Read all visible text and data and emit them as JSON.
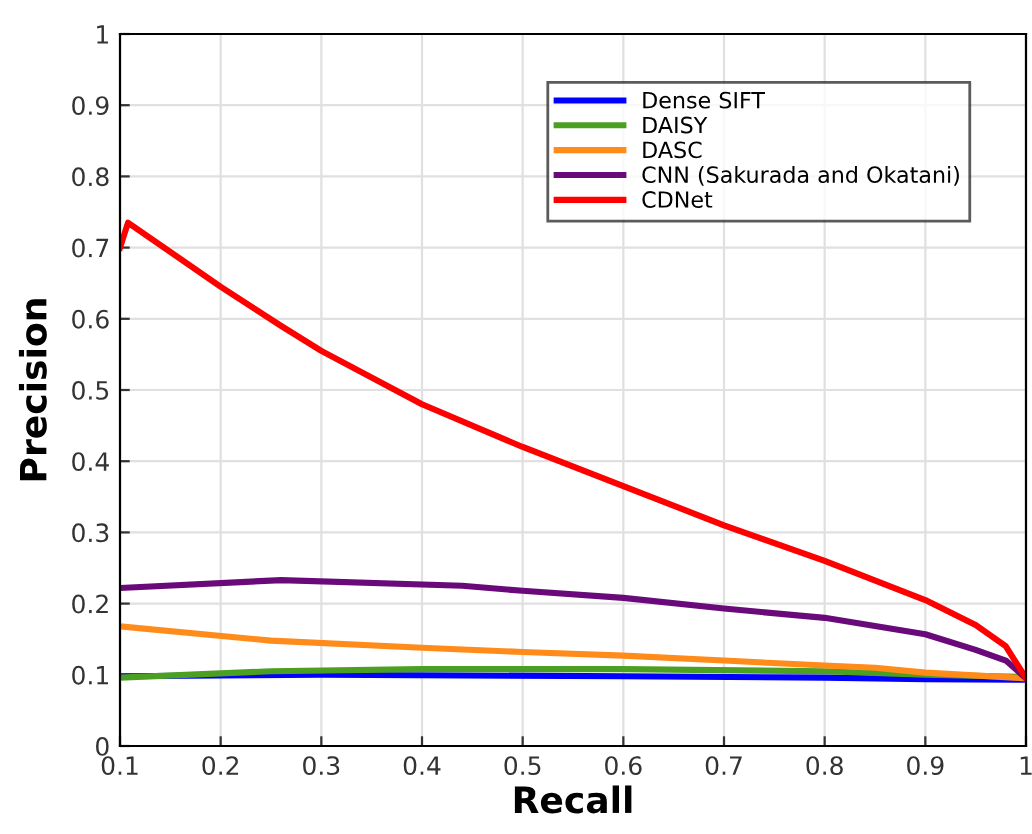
{
  "chart_data": {
    "type": "line",
    "xlabel": "Recall",
    "ylabel": "Precision",
    "xlim": [
      0.1,
      1
    ],
    "ylim": [
      0,
      1
    ],
    "xticks": [
      0.1,
      0.2,
      0.3,
      0.4,
      0.5,
      0.6,
      0.7,
      0.8,
      0.9,
      1
    ],
    "yticks": [
      0,
      0.1,
      0.2,
      0.3,
      0.4,
      0.5,
      0.6,
      0.7,
      0.8,
      0.9,
      1
    ],
    "grid": true,
    "legend": "top right",
    "line_style": "solid",
    "marker": "none",
    "series": [
      {
        "name": "Dense SIFT",
        "color": "#0000ff",
        "x": [
          0.1,
          0.3,
          0.6,
          0.8,
          0.9,
          1.0
        ],
        "values": [
          0.098,
          0.1,
          0.098,
          0.096,
          0.094,
          0.093
        ]
      },
      {
        "name": "DAISY",
        "color": "#4ca021",
        "x": [
          0.1,
          0.25,
          0.4,
          0.6,
          0.8,
          0.9,
          1.0
        ],
        "values": [
          0.096,
          0.105,
          0.108,
          0.108,
          0.105,
          0.1,
          0.097
        ]
      },
      {
        "name": "DASC",
        "color": "#ff8c1a",
        "x": [
          0.1,
          0.25,
          0.4,
          0.5,
          0.6,
          0.7,
          0.8,
          0.85,
          0.9,
          1.0
        ],
        "values": [
          0.168,
          0.148,
          0.138,
          0.132,
          0.127,
          0.12,
          0.113,
          0.11,
          0.103,
          0.095
        ]
      },
      {
        "name": "CNN (Sakurada and Okatani)",
        "color": "#6a0a7a",
        "x": [
          0.1,
          0.26,
          0.44,
          0.5,
          0.6,
          0.7,
          0.8,
          0.9,
          0.95,
          0.98,
          1.0
        ],
        "values": [
          0.222,
          0.233,
          0.225,
          0.218,
          0.208,
          0.193,
          0.18,
          0.157,
          0.135,
          0.12,
          0.095
        ]
      },
      {
        "name": "CDNet",
        "color": "#ff0000",
        "x": [
          0.1,
          0.108,
          0.2,
          0.26,
          0.3,
          0.4,
          0.5,
          0.6,
          0.7,
          0.8,
          0.9,
          0.95,
          0.98,
          1.0
        ],
        "values": [
          0.7,
          0.735,
          0.645,
          0.59,
          0.555,
          0.48,
          0.42,
          0.365,
          0.31,
          0.26,
          0.205,
          0.17,
          0.14,
          0.095
        ]
      }
    ]
  }
}
